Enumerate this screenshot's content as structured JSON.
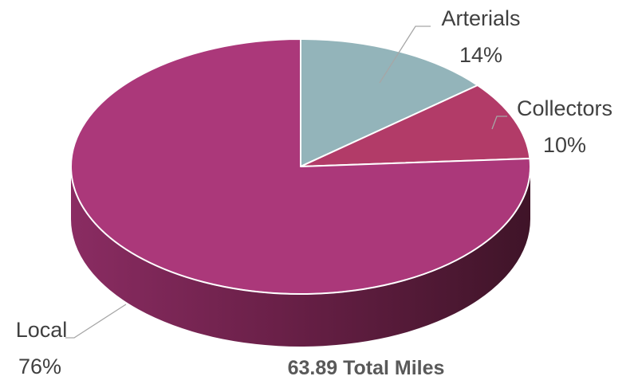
{
  "chart_data": {
    "type": "pie",
    "style": "3d",
    "categories": [
      "Arterials",
      "Collectors",
      "Local"
    ],
    "values": [
      14,
      10,
      76
    ],
    "value_labels": [
      "14%",
      "10%",
      "76%"
    ],
    "colors": {
      "Arterials": "#93b4ba",
      "Collectors": "#b23b68",
      "Local": "#ab387a",
      "side_light": "#8a2c62",
      "side_dark": "#3f1428",
      "separator": "#ffffff"
    },
    "legend": "none",
    "total_label": "63.89 Total  Miles"
  }
}
